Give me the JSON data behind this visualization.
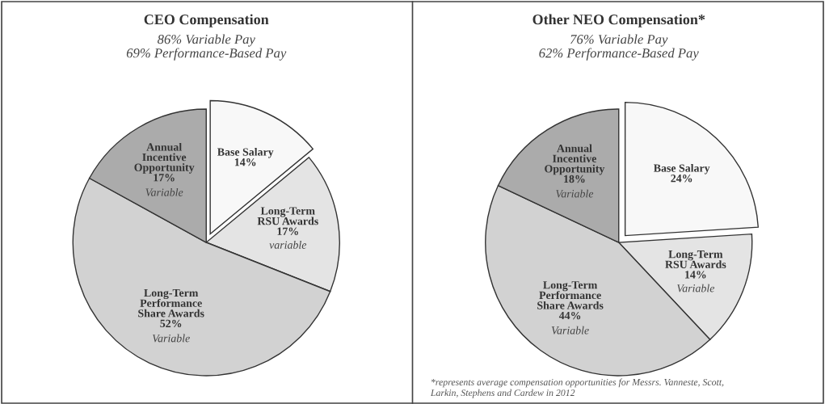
{
  "chart_data": [
    {
      "type": "pie",
      "title": "CEO Compensation",
      "subtitle": "86% Variable Pay\n69% Performance-Based Pay",
      "categories": [
        "Base Salary",
        "Long-Term\nRSU Awards",
        "Long-Term\nPerformance\nShare Awards",
        "Annual\nIncentive\nOpportunity"
      ],
      "values": [
        14,
        17,
        52,
        17
      ],
      "value_labels": [
        "14%",
        "17%\nvariable",
        "52%\nVariable",
        "17%\nVariable"
      ],
      "colors": [
        "#f8f8f8",
        "#e4e4e4",
        "#d2d2d2",
        "#ababab"
      ]
    },
    {
      "type": "pie",
      "title": "Other NEO Compensation*",
      "subtitle": "76% Variable Pay\n62% Performance-Based Pay",
      "categories": [
        "Base Salary",
        "Long-Term\nRSU Awards",
        "Long-Term\nPerformance\nShare Awards",
        "Annual\nIncentive\nOpportunity"
      ],
      "values": [
        24,
        14,
        44,
        18
      ],
      "value_labels": [
        "24%",
        "14%\nVariable",
        "44%\nVariable",
        "18%\nVariable"
      ],
      "colors": [
        "#f8f8f8",
        "#e4e4e4",
        "#d2d2d2",
        "#ababab"
      ],
      "annotations": [
        "*represents average compensation opportunities for Messrs. Vanneste, Scott,\nLarkin, Stephens and Cardew in 2012"
      ]
    }
  ]
}
